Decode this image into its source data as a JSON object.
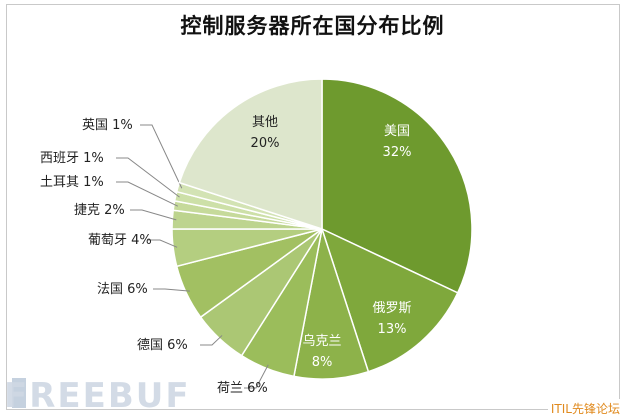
{
  "chart_data": {
    "type": "pie",
    "title": "控制服务器所在国分布比例",
    "slices": [
      {
        "label": "美国",
        "value": 32,
        "pct": "32%",
        "color": "#6e9a2e"
      },
      {
        "label": "俄罗斯",
        "value": 13,
        "pct": "13%",
        "color": "#7fa83c"
      },
      {
        "label": "乌克兰",
        "value": 8,
        "pct": "8%",
        "color": "#8db24a"
      },
      {
        "label": "荷兰",
        "value": 6,
        "pct": "6%",
        "color": "#9bbd5b"
      },
      {
        "label": "德国",
        "value": 6,
        "pct": "6%",
        "color": "#abc774"
      },
      {
        "label": "法国",
        "value": 6,
        "pct": "6%",
        "color": "#a2c062"
      },
      {
        "label": "葡萄牙",
        "value": 4,
        "pct": "4%",
        "color": "#b4ce80"
      },
      {
        "label": "捷克",
        "value": 2,
        "pct": "2%",
        "color": "#bdd48e"
      },
      {
        "label": "土耳其",
        "value": 1,
        "pct": "1%",
        "color": "#c6da9b"
      },
      {
        "label": "西班牙",
        "value": 1,
        "pct": "1%",
        "color": "#cde0a8"
      },
      {
        "label": "英国",
        "value": 1,
        "pct": "1%",
        "color": "#d3e3b4"
      },
      {
        "label": "其他",
        "value": 20,
        "pct": "20%",
        "color": "#dde6cc"
      }
    ]
  },
  "watermark": "FREEBUF",
  "footer": "ITIL先锋论坛"
}
